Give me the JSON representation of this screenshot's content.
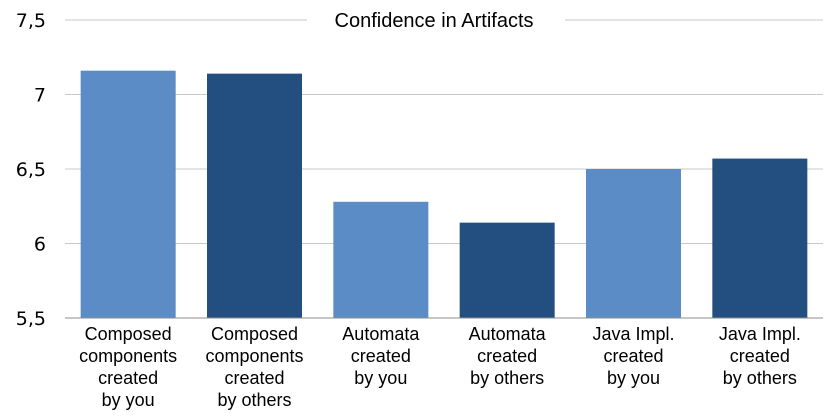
{
  "chart_data": {
    "type": "bar",
    "title": "Confidence in Artifacts",
    "xlabel": "",
    "ylabel": "",
    "ylim": [
      5.5,
      7.5
    ],
    "y_ticks": [
      "5,5",
      "6",
      "6,5",
      "7",
      "7,5"
    ],
    "y_tick_values": [
      5.5,
      6,
      6.5,
      7,
      7.5
    ],
    "grid": true,
    "categories": [
      [
        "Composed",
        "components",
        "created",
        "by you"
      ],
      [
        "Composed",
        "components",
        "created",
        "by others"
      ],
      [
        "Automata",
        "created",
        "by you"
      ],
      [
        "Automata",
        "created",
        "by others"
      ],
      [
        "Java Impl.",
        "created",
        "by you"
      ],
      [
        "Java Impl.",
        "created",
        "by others"
      ]
    ],
    "values": [
      7.16,
      7.14,
      6.28,
      6.14,
      6.5,
      6.57
    ],
    "colors": [
      "#5B8CC6",
      "#234E80",
      "#5B8CC6",
      "#234E80",
      "#5B8CC6",
      "#234E80"
    ]
  }
}
